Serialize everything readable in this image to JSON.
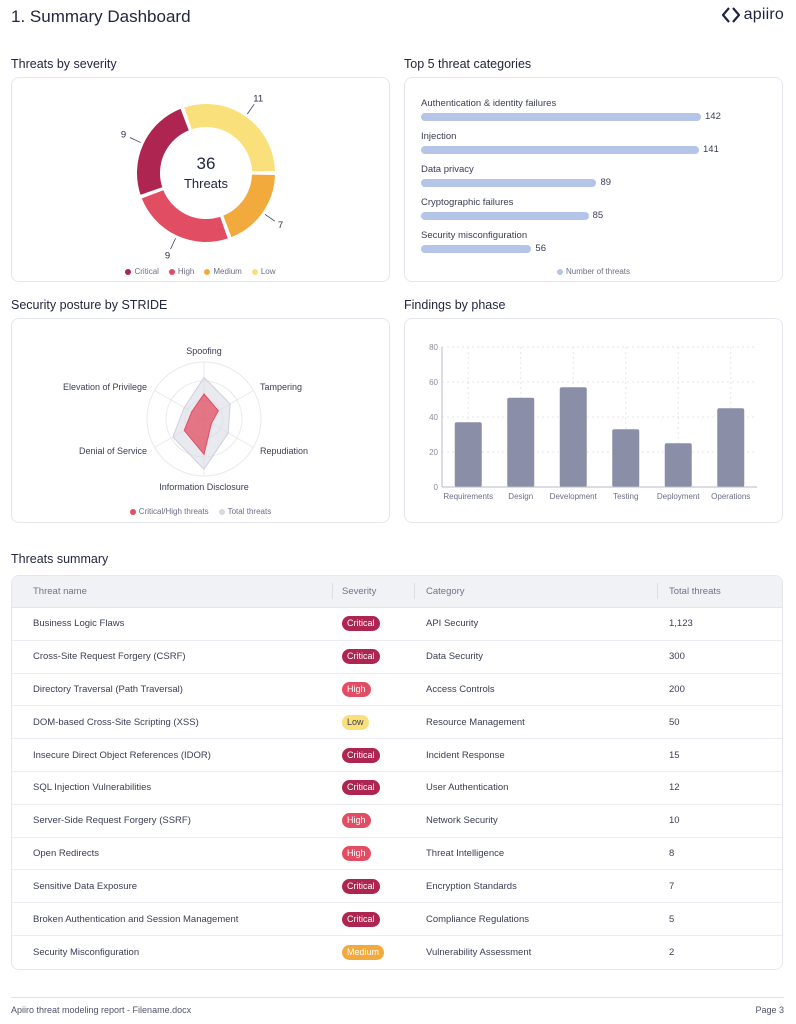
{
  "header": {
    "page_title": "1. Summary Dashboard",
    "logo_text": "apiiro",
    "logo_icon": "apiiro-chevrons-icon"
  },
  "colors": {
    "critical": "#ad2550",
    "high": "#e14d62",
    "medium": "#f2aa3d",
    "low": "#f9e07a",
    "category_bar": "#b5c5e8",
    "phase_bar": "#8a8ea6",
    "radar_critical_high": "#e14d62",
    "radar_total": "#d7d8e2"
  },
  "sections": {
    "severity_title": "Threats by severity",
    "categories_title": "Top 5 threat categories",
    "stride_title": "Security posture by STRIDE",
    "phase_title": "Findings by phase",
    "table_title": "Threats summary"
  },
  "chart_data": [
    {
      "type": "pie",
      "variant": "donut",
      "title": "Threats by severity",
      "center_value": "36",
      "center_label": "Threats",
      "categories": [
        "Low",
        "Medium",
        "High",
        "Critical"
      ],
      "values": [
        11,
        7,
        9,
        9
      ],
      "legend": [
        "Critical",
        "High",
        "Medium",
        "Low"
      ],
      "legend_placement": "bottom"
    },
    {
      "type": "bar",
      "orientation": "horizontal",
      "title": "Top 5 threat categories",
      "categories": [
        "Authentication & identity failures",
        "Injection",
        "Data privacy",
        "Cryptographic failures",
        "Security misconfiguration"
      ],
      "values": [
        142,
        141,
        89,
        85,
        56
      ],
      "legend": [
        "Number of threats"
      ],
      "legend_placement": "bottom",
      "xlim": [
        0,
        170
      ]
    },
    {
      "type": "radar",
      "title": "Security posture by STRIDE",
      "categories": [
        "Spoofing",
        "Tampering",
        "Repudiation",
        "Information Disclosure",
        "Denial of Service",
        "Elevation of Privilege"
      ],
      "series": [
        {
          "name": "Total threats",
          "values": [
            0.73,
            0.53,
            0.49,
            0.88,
            0.63,
            0.4
          ]
        },
        {
          "name": "Critical/High threats",
          "values": [
            0.44,
            0.29,
            0.15,
            0.62,
            0.4,
            0.25
          ]
        }
      ],
      "range": [
        0,
        1
      ],
      "rings": 3,
      "legend": [
        "Critical/High threats",
        "Total threats"
      ],
      "legend_placement": "bottom"
    },
    {
      "type": "bar",
      "title": "Findings by phase",
      "categories": [
        "Requirements",
        "Design",
        "Development",
        "Testing",
        "Deployment",
        "Operations"
      ],
      "values": [
        37,
        51,
        57,
        33,
        25,
        45
      ],
      "yticks": [
        0,
        20,
        40,
        60,
        80
      ],
      "ylim": [
        0,
        80
      ],
      "grid": true,
      "xlabel": "",
      "ylabel": ""
    }
  ],
  "table": {
    "columns": [
      "Threat name",
      "Severity",
      "Category",
      "Total threats"
    ],
    "rows": [
      {
        "name": "Business Logic Flaws",
        "severity": "Critical",
        "category": "API Security",
        "total": "1,123"
      },
      {
        "name": "Cross-Site Request Forgery (CSRF)",
        "severity": "Critical",
        "category": "Data Security",
        "total": "300"
      },
      {
        "name": "Directory Traversal (Path Traversal)",
        "severity": "High",
        "category": "Access Controls",
        "total": "200"
      },
      {
        "name": "DOM-based Cross-Site Scripting (XSS)",
        "severity": "Low",
        "category": "Resource Management",
        "total": "50"
      },
      {
        "name": "Insecure Direct Object References (IDOR)",
        "severity": "Critical",
        "category": "Incident Response",
        "total": "15"
      },
      {
        "name": "SQL Injection Vulnerabilities",
        "severity": "Critical",
        "category": "User Authentication",
        "total": "12"
      },
      {
        "name": "Server-Side Request Forgery (SSRF)",
        "severity": "High",
        "category": "Network Security",
        "total": "10"
      },
      {
        "name": "Open Redirects",
        "severity": "High",
        "category": "Threat Intelligence",
        "total": "8"
      },
      {
        "name": "Sensitive Data Exposure",
        "severity": "Critical",
        "category": "Encryption Standards",
        "total": "7"
      },
      {
        "name": "Broken Authentication and Session Management",
        "severity": "Critical",
        "category": "Compliance Regulations",
        "total": "5"
      },
      {
        "name": "Security Misconfiguration",
        "severity": "Medium",
        "category": "Vulnerability Assessment",
        "total": "2"
      }
    ]
  },
  "footer": {
    "left": "Apiiro threat modeling report - Filename.docx",
    "right": "Page 3"
  }
}
